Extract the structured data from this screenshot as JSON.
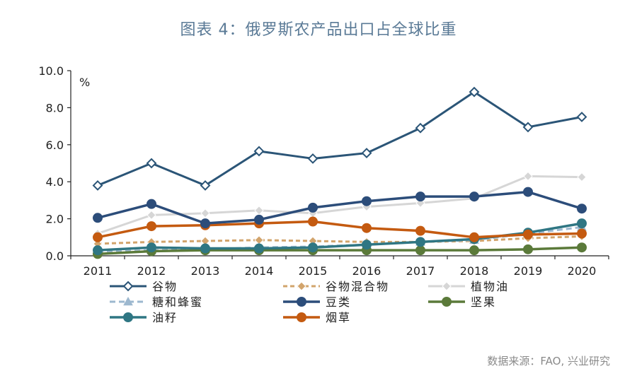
{
  "chart_data": {
    "type": "line",
    "title": "图表 4：俄罗斯农产品出口占全球比重",
    "ylabel": "%",
    "xlabel": "",
    "ylim": [
      0,
      10
    ],
    "yticks": [
      "0.0",
      "2.0",
      "4.0",
      "6.0",
      "8.0",
      "10.0"
    ],
    "categories": [
      "2011",
      "2012",
      "2013",
      "2014",
      "2015",
      "2016",
      "2017",
      "2018",
      "2019",
      "2020"
    ],
    "grid": false,
    "legend": "bottom",
    "series": [
      {
        "name": "谷物",
        "color": "#2b5577",
        "dash": "",
        "marker": "diamond-open",
        "values": [
          3.8,
          5.0,
          3.8,
          5.65,
          5.25,
          5.55,
          6.9,
          8.85,
          6.95,
          7.5
        ]
      },
      {
        "name": "谷物混合物",
        "color": "#d2a46c",
        "dash": "6,4",
        "marker": "diamond-filled",
        "values": [
          0.65,
          0.75,
          0.8,
          0.85,
          0.8,
          0.75,
          0.75,
          0.8,
          0.95,
          1.05
        ]
      },
      {
        "name": "植物油",
        "color": "#d6d6d6",
        "dash": "",
        "marker": "diamond-filled",
        "values": [
          1.2,
          2.2,
          2.3,
          2.45,
          2.3,
          2.65,
          2.85,
          3.1,
          4.3,
          4.25
        ]
      },
      {
        "name": "糖和蜂蜜",
        "color": "#9db8cf",
        "dash": "8,5",
        "marker": "triangle",
        "values": [
          0.2,
          0.3,
          0.35,
          0.45,
          0.5,
          0.6,
          0.75,
          0.85,
          1.2,
          1.55
        ]
      },
      {
        "name": "豆类",
        "color": "#2c4d7a",
        "dash": "",
        "marker": "circle",
        "values": [
          2.05,
          2.8,
          1.75,
          1.95,
          2.6,
          2.95,
          3.2,
          3.2,
          3.45,
          2.55
        ]
      },
      {
        "name": "坚果",
        "color": "#5b7a3a",
        "dash": "",
        "marker": "circle",
        "values": [
          0.1,
          0.25,
          0.3,
          0.3,
          0.3,
          0.3,
          0.3,
          0.3,
          0.35,
          0.45
        ]
      },
      {
        "name": "油籽",
        "color": "#2f7683",
        "dash": "",
        "marker": "circle",
        "values": [
          0.3,
          0.45,
          0.4,
          0.4,
          0.45,
          0.6,
          0.75,
          0.9,
          1.25,
          1.75
        ]
      },
      {
        "name": "烟草",
        "color": "#c45a10",
        "dash": "",
        "marker": "circle",
        "values": [
          1.0,
          1.6,
          1.65,
          1.75,
          1.85,
          1.5,
          1.35,
          1.0,
          1.15,
          1.2
        ]
      }
    ]
  },
  "source": "数据来源：FAO, 兴业研究"
}
